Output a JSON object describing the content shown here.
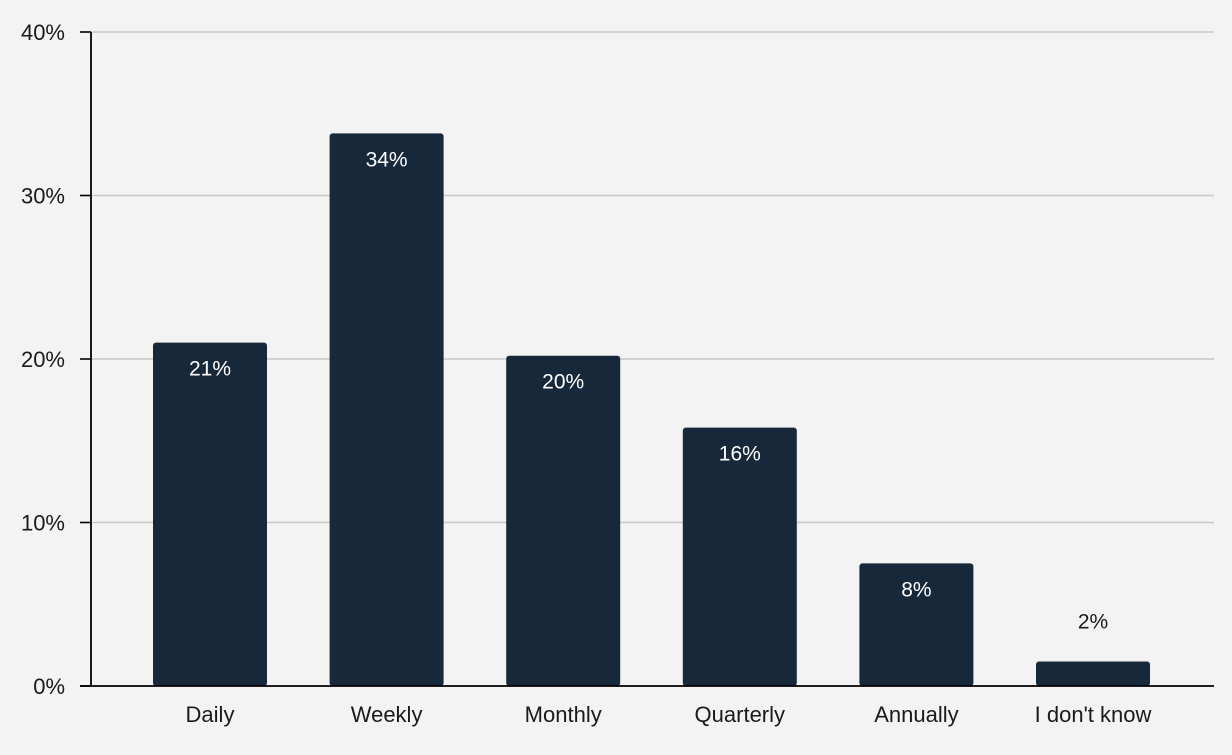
{
  "chart_data": {
    "type": "bar",
    "title": "",
    "xlabel": "",
    "ylabel": "",
    "categories": [
      "Daily",
      "Weekly",
      "Monthly",
      "Quarterly",
      "Annually",
      "I don't know"
    ],
    "values": [
      21,
      34,
      20,
      16,
      8,
      2
    ],
    "value_labels": [
      "21%",
      "34%",
      "20%",
      "16%",
      "8%",
      "2%"
    ],
    "shown_values": [
      21,
      33.8,
      20.2,
      15.8,
      7.5,
      1.5
    ],
    "ylim": [
      0,
      40
    ],
    "y_ticks": [
      0,
      10,
      20,
      30,
      40
    ],
    "y_tick_labels": [
      "0%",
      "10%",
      "20%",
      "30%",
      "40%"
    ],
    "grid": true,
    "legend": "none",
    "colors": {
      "bar": "#18283b",
      "background": "#f3f3f3",
      "grid": "#c8c8c8",
      "axis": "#000000",
      "label_inside": "#ffffff",
      "label_outside": "#1a1a1a"
    }
  }
}
